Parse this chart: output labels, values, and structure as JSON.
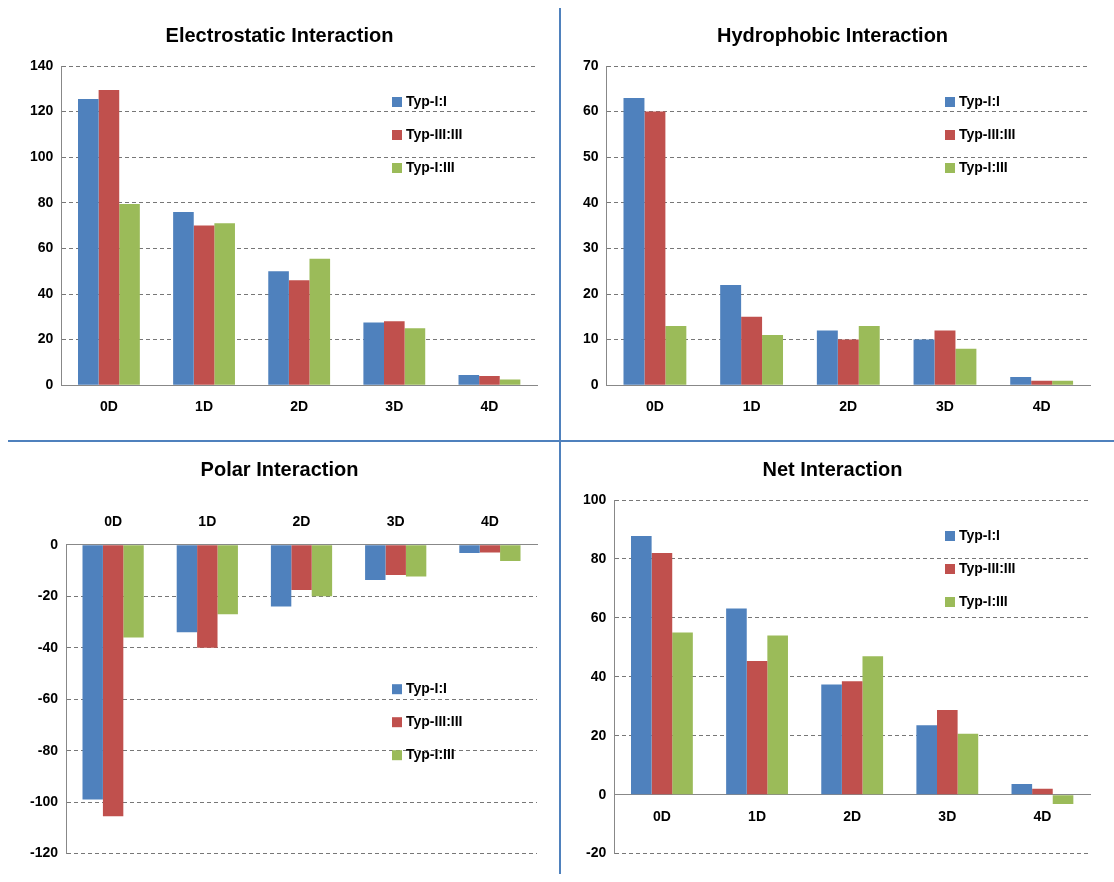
{
  "chart_data": [
    {
      "type": "bar",
      "title": "Electrostatic Interaction",
      "categories": [
        "0D",
        "1D",
        "2D",
        "3D",
        "4D"
      ],
      "series": [
        {
          "name": "Typ-I:I",
          "color": "#4f81bd",
          "values": [
            125.5,
            76,
            50,
            27.5,
            4.5
          ]
        },
        {
          "name": "Typ-III:III",
          "color": "#c0504d",
          "values": [
            129.5,
            70,
            46,
            28,
            4
          ]
        },
        {
          "name": "Typ-I:III",
          "color": "#9bbb59",
          "values": [
            79.5,
            71,
            55.5,
            25,
            2.5
          ]
        }
      ],
      "ylim": [
        0,
        140
      ],
      "yticks": [
        0,
        20,
        40,
        60,
        80,
        100,
        120,
        140
      ],
      "grid": "y",
      "legend": "top right"
    },
    {
      "type": "bar",
      "title": "Hydrophobic Interaction",
      "categories": [
        "0D",
        "1D",
        "2D",
        "3D",
        "4D"
      ],
      "series": [
        {
          "name": "Typ-I:I",
          "color": "#4f81bd",
          "values": [
            63,
            22,
            12,
            10,
            1.8
          ]
        },
        {
          "name": "Typ-III:III",
          "color": "#c0504d",
          "values": [
            60,
            15,
            10,
            12,
            1
          ]
        },
        {
          "name": "Typ-I:III",
          "color": "#9bbb59",
          "values": [
            13,
            11,
            13,
            8,
            1
          ]
        }
      ],
      "ylim": [
        0,
        70
      ],
      "yticks": [
        0,
        10,
        20,
        30,
        40,
        50,
        60,
        70
      ],
      "grid": "y",
      "legend": "top right"
    },
    {
      "type": "bar",
      "title": "Polar Interaction",
      "categories": [
        "0D",
        "1D",
        "2D",
        "3D",
        "4D"
      ],
      "series": [
        {
          "name": "Typ-I:I",
          "color": "#4f81bd",
          "values": [
            -99,
            -34,
            -24,
            -13.7,
            -3.2
          ]
        },
        {
          "name": "Typ-III:III",
          "color": "#c0504d",
          "values": [
            -105.5,
            -40,
            -17.6,
            -11.7,
            -3
          ]
        },
        {
          "name": "Typ-I:III",
          "color": "#9bbb59",
          "values": [
            -36,
            -27,
            -20,
            -12.3,
            -6.3
          ]
        }
      ],
      "ylim": [
        -120,
        0
      ],
      "yticks": [
        -120,
        -100,
        -80,
        -60,
        -40,
        -20,
        0
      ],
      "grid": "y",
      "legend": "right"
    },
    {
      "type": "bar",
      "title": "Net Interaction",
      "categories": [
        "0D",
        "1D",
        "2D",
        "3D",
        "4D"
      ],
      "series": [
        {
          "name": "Typ-I:I",
          "color": "#4f81bd",
          "values": [
            87.8,
            63.2,
            37.4,
            23.6,
            3.6
          ]
        },
        {
          "name": "Typ-III:III",
          "color": "#c0504d",
          "values": [
            82,
            45.4,
            38.5,
            28.7,
            2
          ]
        },
        {
          "name": "Typ-I:III",
          "color": "#9bbb59",
          "values": [
            55,
            54,
            47,
            20.7,
            -3.2
          ]
        }
      ],
      "ylim": [
        -20,
        100
      ],
      "yticks": [
        -20,
        0,
        20,
        40,
        60,
        80,
        100
      ],
      "grid": "y",
      "legend": "top right"
    }
  ]
}
